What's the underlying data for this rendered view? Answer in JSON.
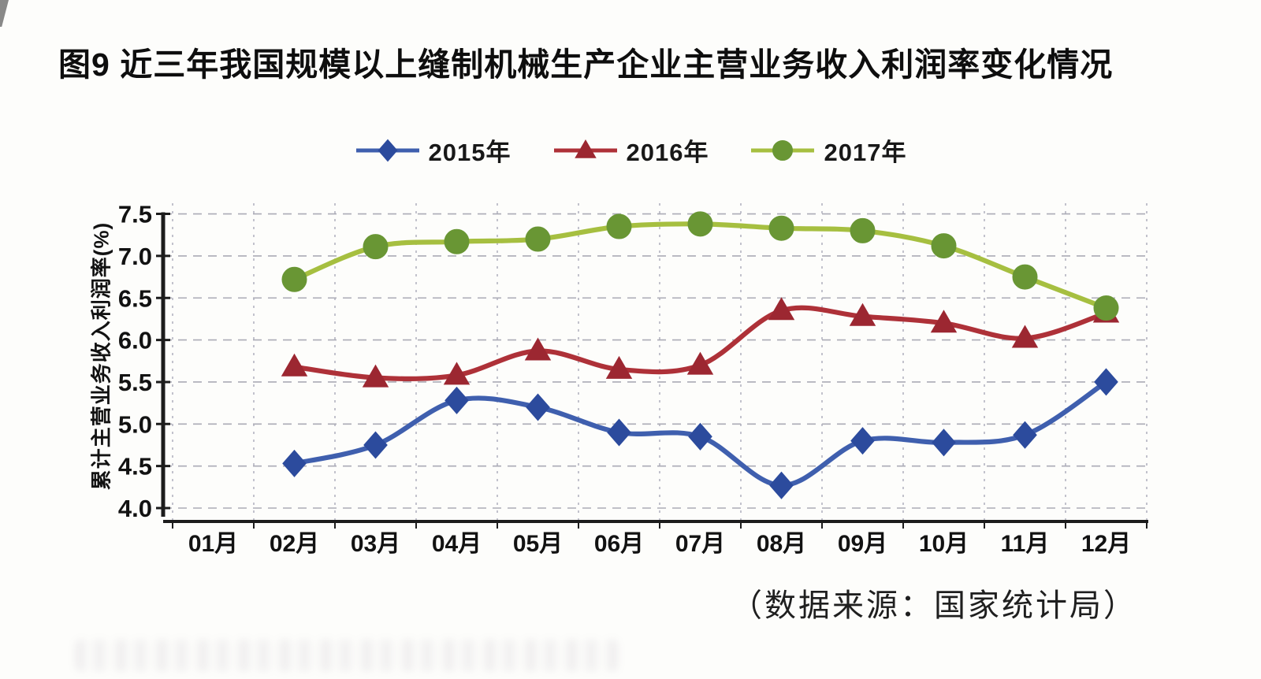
{
  "figure": {
    "title": "图9 近三年我国规模以上缝制机械生产企业主营业务收入利润率变化情况",
    "source_note": "（数据来源：国家统计局）"
  },
  "chart_data": {
    "type": "line",
    "title": "图9 近三年我国规模以上缝制机械生产企业主营业务收入利润率变化情况",
    "xlabel": "",
    "ylabel": "累计主营业务收入利润率(%)",
    "categories": [
      "01月",
      "02月",
      "03月",
      "04月",
      "05月",
      "06月",
      "07月",
      "08月",
      "09月",
      "10月",
      "11月",
      "12月"
    ],
    "ylim": [
      4.0,
      7.5
    ],
    "ytick_step": 0.5,
    "y_tick_labels": [
      "7.5",
      "7.0",
      "6.5",
      "6.0",
      "5.5",
      "5.0",
      "4.5",
      "4.0"
    ],
    "grid": true,
    "line_smoothing": true,
    "legend_position": "top",
    "series": [
      {
        "name": "2015年",
        "marker": "diamond",
        "marker_color": "#2c4b9d",
        "line_color": "#3f5fae",
        "values": [
          null,
          4.53,
          4.75,
          5.28,
          5.2,
          4.9,
          4.85,
          4.27,
          4.8,
          4.78,
          4.87,
          5.5
        ]
      },
      {
        "name": "2016年",
        "marker": "triangle",
        "marker_color": "#9c2731",
        "line_color": "#ae3138",
        "values": [
          null,
          5.68,
          5.55,
          5.58,
          5.87,
          5.65,
          5.7,
          6.35,
          6.28,
          6.2,
          6.02,
          6.32
        ]
      },
      {
        "name": "2017年",
        "marker": "circle",
        "marker_color": "#699634",
        "line_color": "#a6bf40",
        "values": [
          null,
          6.72,
          7.11,
          7.17,
          7.2,
          7.35,
          7.38,
          7.33,
          7.3,
          7.12,
          6.75,
          6.38
        ]
      }
    ],
    "colors": {
      "axis": "#1c1c1c",
      "grid_h": "#ababb6",
      "grid_v": "#b4b4c0",
      "text": "#121212"
    }
  }
}
